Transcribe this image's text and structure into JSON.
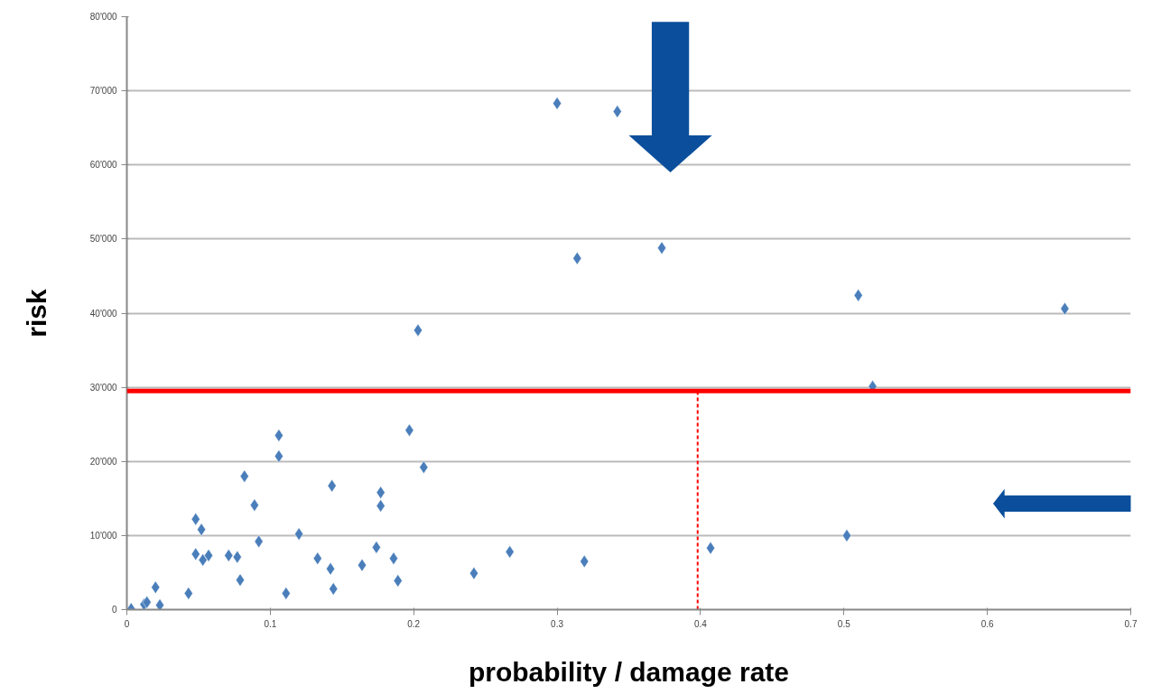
{
  "chart_data": {
    "type": "scatter",
    "xlabel": "probability / damage rate",
    "ylabel": "risk",
    "series": [
      {
        "color": "#4a7ebb",
        "x": [
          0.003,
          0.012,
          0.014,
          0.02,
          0.023,
          0.043,
          0.048,
          0.052,
          0.048,
          0.053,
          0.057,
          0.071,
          0.077,
          0.079,
          0.082,
          0.089,
          0.092,
          0.106,
          0.106,
          0.111,
          0.12,
          0.133,
          0.142,
          0.144,
          0.143,
          0.164,
          0.174,
          0.177,
          0.177,
          0.186,
          0.189,
          0.197,
          0.207,
          0.203,
          0.242,
          0.267,
          0.3,
          0.319,
          0.314,
          0.342,
          0.373,
          0.407,
          0.502,
          0.51,
          0.52,
          0.654
        ],
        "values": [
          100,
          700,
          1000,
          3000,
          600,
          2200,
          12200,
          10800,
          7500,
          6700,
          7300,
          7300,
          7100,
          4000,
          18000,
          14100,
          9200,
          23500,
          20700,
          2200,
          10200,
          6900,
          5500,
          2800,
          16700,
          6000,
          8400,
          15800,
          14000,
          6900,
          3900,
          24200,
          19200,
          37700,
          4900,
          7800,
          68300,
          6500,
          47400,
          67200,
          48800,
          8300,
          10000,
          42400,
          30100,
          40600
        ]
      }
    ],
    "marker": "diamond",
    "grid": "y",
    "xlim": [
      0,
      0.7
    ],
    "xticks": [
      0,
      0.1,
      0.2,
      0.3,
      0.4,
      0.5,
      0.6,
      0.7
    ],
    "ylim": [
      0,
      80000
    ],
    "yticks": [
      {
        "value": 0,
        "label": "0"
      },
      {
        "value": 10000,
        "label": "10'000"
      },
      {
        "value": 20000,
        "label": "20'000"
      },
      {
        "value": 30000,
        "label": "30'000"
      },
      {
        "value": 40000,
        "label": "40'000"
      },
      {
        "value": 50000,
        "label": "50'000"
      },
      {
        "value": 60000,
        "label": "60'000"
      },
      {
        "value": 70000,
        "label": "70'000"
      },
      {
        "value": 80000,
        "label": "80'000"
      }
    ],
    "ref_lines": [
      {
        "axis": "y",
        "value": 29500,
        "color": "#ff0000",
        "line_style": "solid"
      },
      {
        "axis": "x",
        "value": 0.398,
        "color": "#ff0000",
        "line_style": "dashed"
      }
    ]
  }
}
